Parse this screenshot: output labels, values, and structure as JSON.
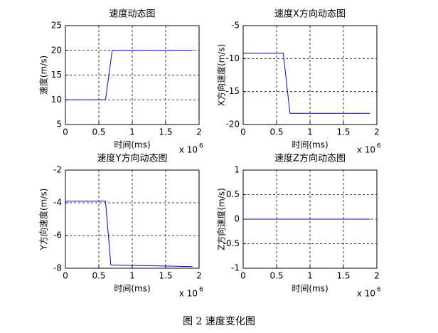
{
  "chart_data": [
    {
      "type": "line",
      "title": "速度动态图",
      "xlabel": "时间(ms)",
      "ylabel": "速度(m/s)",
      "x_scale_base": "x 10",
      "x_scale_exponent": "6",
      "x": [
        0,
        0.6,
        0.7,
        1.9
      ],
      "values": [
        10,
        10,
        20,
        20
      ],
      "color": "#0000ff",
      "xlim": [
        0,
        2
      ],
      "xticks": [
        0,
        0.5,
        1,
        1.5,
        2
      ],
      "ylim": [
        5,
        25
      ],
      "yticks": [
        5,
        10,
        15,
        20,
        25
      ],
      "grid": true
    },
    {
      "type": "line",
      "title": "速度X方向动态图",
      "xlabel": "时间(ms)",
      "ylabel": "X方向速度(m/s)",
      "x_scale_base": "x 10",
      "x_scale_exponent": "6",
      "x": [
        0,
        0.6,
        0.7,
        1.9
      ],
      "values": [
        -9.2,
        -9.2,
        -18.3,
        -18.3
      ],
      "color": "#0000ff",
      "xlim": [
        0,
        2
      ],
      "xticks": [
        0,
        0.5,
        1,
        1.5,
        2
      ],
      "ylim": [
        -20,
        -5
      ],
      "yticks": [
        -20,
        -15,
        -10,
        -5
      ],
      "grid": true
    },
    {
      "type": "line",
      "title": "速度Y方向动态图",
      "xlabel": "时间(ms)",
      "ylabel": "Y方向速度(m/s)",
      "x_scale_base": "x 10",
      "x_scale_exponent": "6",
      "x": [
        0,
        0.6,
        0.68,
        1.9
      ],
      "values": [
        -3.9,
        -3.9,
        -7.8,
        -7.9
      ],
      "color": "#0000ff",
      "xlim": [
        0,
        2
      ],
      "xticks": [
        0,
        0.5,
        1,
        1.5,
        2
      ],
      "ylim": [
        -8,
        -2
      ],
      "yticks": [
        -8,
        -6,
        -4,
        -2
      ],
      "grid": true
    },
    {
      "type": "line",
      "title": "速度Z方向动态图",
      "xlabel": "时间(ms)",
      "ylabel": "Z方向速度(m/s)",
      "x_scale_base": "x 10",
      "x_scale_exponent": "6",
      "x": [
        0,
        1.9
      ],
      "values": [
        0,
        0
      ],
      "color": "#0000ff",
      "xlim": [
        0,
        2
      ],
      "xticks": [
        0,
        0.5,
        1,
        1.5,
        2
      ],
      "ylim": [
        -1,
        1
      ],
      "yticks": [
        -1,
        -0.5,
        0,
        0.5,
        1
      ],
      "grid": true
    }
  ],
  "caption": "图 2 速度变化图"
}
